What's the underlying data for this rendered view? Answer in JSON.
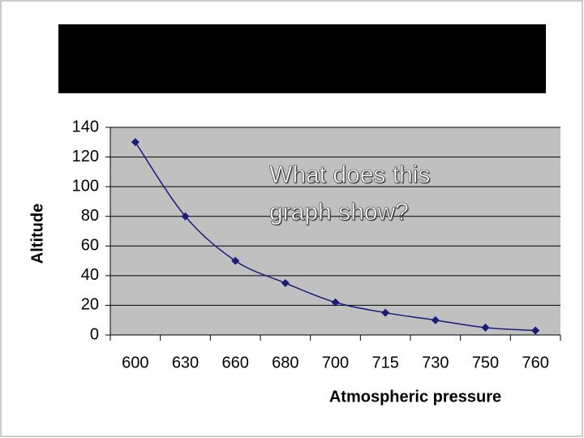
{
  "chart_data": {
    "type": "line",
    "xlabel": "Atmospheric pressure",
    "ylabel": "Altitude",
    "annotation": "What does this graph show?",
    "categories": [
      "600",
      "630",
      "660",
      "680",
      "700",
      "715",
      "730",
      "750",
      "760"
    ],
    "values": [
      130,
      80,
      50,
      35,
      22,
      15,
      10,
      5,
      3
    ],
    "color": "#1c1c78",
    "ylim": [
      0,
      140
    ],
    "yticks": [
      0,
      20,
      40,
      60,
      80,
      100,
      120,
      140
    ],
    "grid": true
  }
}
